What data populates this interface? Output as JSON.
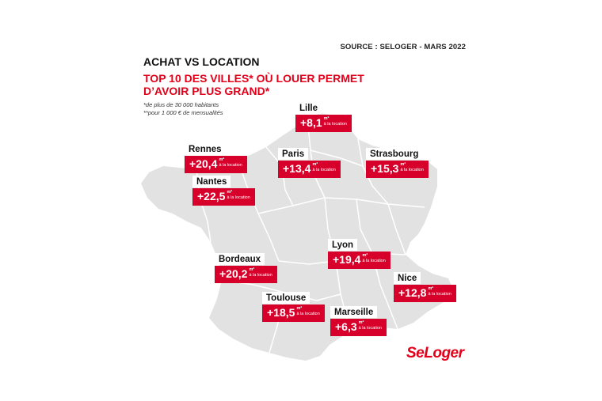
{
  "source": "SOURCE : SELOGER - MARS 2022",
  "title": "ACHAT VS LOCATION",
  "subtitle": "TOP 10 DES VILLES* OÙ LOUER PERMET D’AVOIR PLUS GRAND*",
  "footnotes": [
    "*de plus de 30 000 habitants",
    "**pour 1 000 € de mensualités"
  ],
  "unit_sup": "m²",
  "unit_label": "à la location",
  "colors": {
    "accent": "#e2001a",
    "box": "#d6002a",
    "land": "#e2e2e2",
    "border": "#ffffff"
  },
  "cities": [
    {
      "name": "Lille",
      "value": "+8,1"
    },
    {
      "name": "Rennes",
      "value": "+20,4"
    },
    {
      "name": "Paris",
      "value": "+13,4"
    },
    {
      "name": "Strasbourg",
      "value": "+15,3"
    },
    {
      "name": "Nantes",
      "value": "+22,5"
    },
    {
      "name": "Lyon",
      "value": "+19,4"
    },
    {
      "name": "Bordeaux",
      "value": "+20,2"
    },
    {
      "name": "Nice",
      "value": "+12,8"
    },
    {
      "name": "Toulouse",
      "value": "+18,5"
    },
    {
      "name": "Marseille",
      "value": "+6,3"
    }
  ],
  "logo": "SeLoger"
}
